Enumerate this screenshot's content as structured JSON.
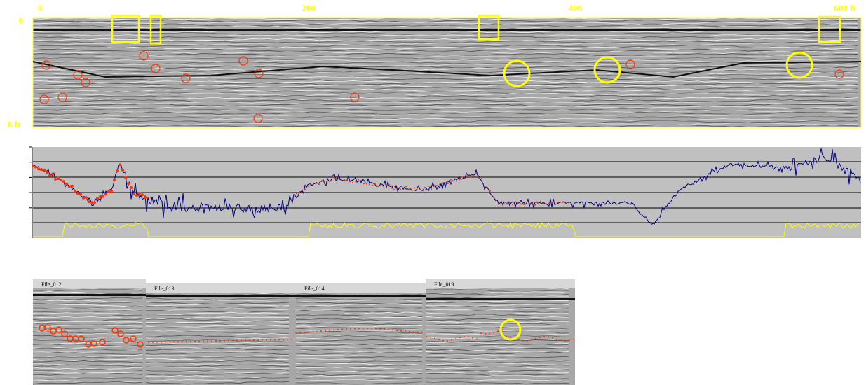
{
  "axis": {
    "distance_labels": [
      "0",
      "200",
      "400",
      "600 ft"
    ],
    "depth_labels": [
      "0",
      "8 ft"
    ]
  },
  "files": [
    "File_012",
    "File_013",
    "File_014",
    "File_019"
  ]
}
